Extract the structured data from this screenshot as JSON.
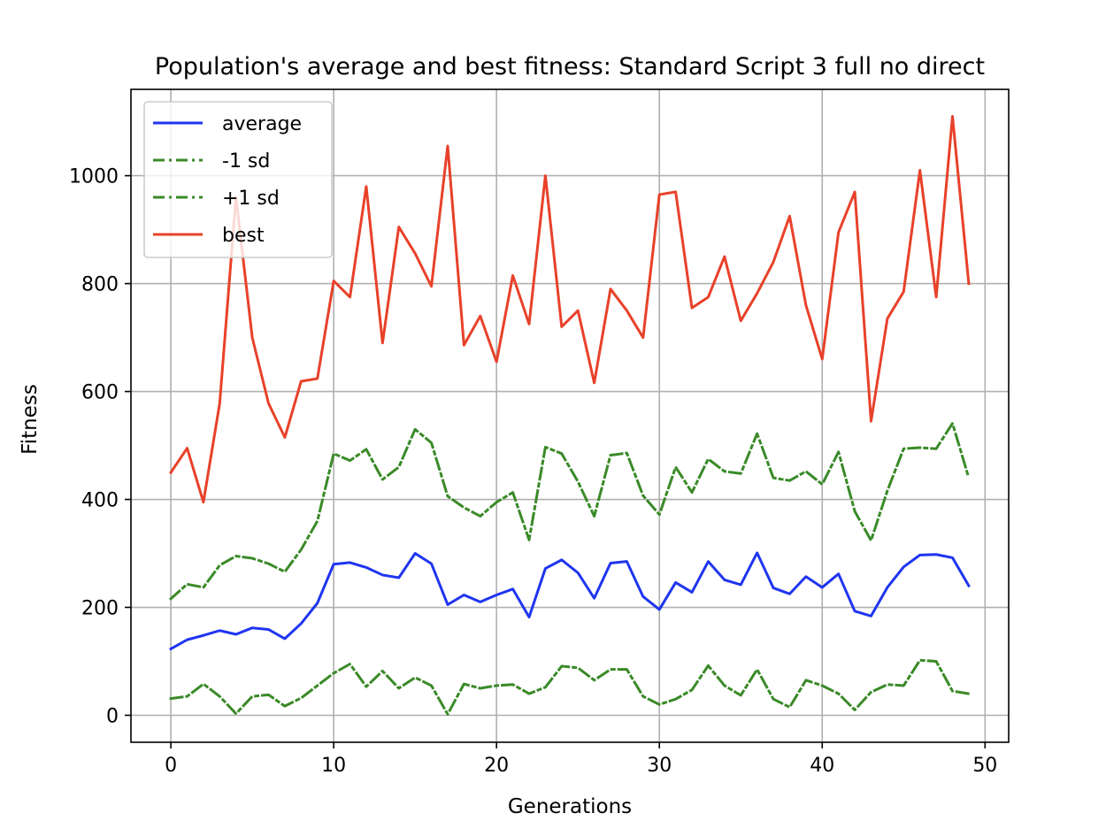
{
  "chart_data": {
    "type": "line",
    "title": "Population's average and best fitness: Standard Script 3 full no direct",
    "xlabel": "Generations",
    "ylabel": "Fitness",
    "xlim": [
      -2.45,
      51.45
    ],
    "ylim": [
      -50,
      1160
    ],
    "xticks": [
      0,
      10,
      20,
      30,
      40,
      50
    ],
    "yticks": [
      0,
      200,
      400,
      600,
      800,
      1000
    ],
    "grid": true,
    "legend_position": "upper-left",
    "x": [
      0,
      1,
      2,
      3,
      4,
      5,
      6,
      7,
      8,
      9,
      10,
      11,
      12,
      13,
      14,
      15,
      16,
      17,
      18,
      19,
      20,
      21,
      22,
      23,
      24,
      25,
      26,
      27,
      28,
      29,
      30,
      31,
      32,
      33,
      34,
      35,
      36,
      37,
      38,
      39,
      40,
      41,
      42,
      43,
      44,
      45,
      46,
      47,
      48,
      49
    ],
    "series": [
      {
        "name": "average",
        "color": "#1f35f0",
        "style": "solid",
        "values": [
          123,
          140,
          148,
          157,
          150,
          162,
          159,
          142,
          170,
          208,
          280,
          283,
          274,
          260,
          255,
          300,
          281,
          205,
          223,
          210,
          223,
          234,
          182,
          272,
          288,
          264,
          217,
          282,
          285,
          220,
          196,
          246,
          228,
          285,
          251,
          242,
          301,
          236,
          225,
          257,
          237,
          262,
          193,
          184,
          237,
          275,
          297,
          298,
          292,
          240
        ]
      },
      {
        "name": "-1 sd",
        "color": "#3a8a28",
        "style": "dashdot",
        "values": [
          31,
          35,
          58,
          35,
          3,
          35,
          38,
          17,
          32,
          55,
          78,
          95,
          53,
          82,
          50,
          70,
          55,
          2,
          58,
          50,
          55,
          57,
          40,
          52,
          91,
          88,
          65,
          85,
          85,
          35,
          20,
          30,
          47,
          92,
          55,
          37,
          85,
          30,
          15,
          65,
          55,
          40,
          10,
          43,
          57,
          55,
          102,
          100,
          45,
          40
        ]
      },
      {
        "name": "+1 sd",
        "color": "#3a8a28",
        "style": "dashdot",
        "values": [
          216,
          243,
          237,
          278,
          295,
          291,
          281,
          266,
          307,
          360,
          485,
          472,
          493,
          437,
          460,
          530,
          505,
          406,
          385,
          369,
          395,
          413,
          325,
          497,
          485,
          433,
          369,
          482,
          486,
          407,
          372,
          460,
          413,
          475,
          452,
          448,
          522,
          440,
          435,
          452,
          428,
          488,
          378,
          324,
          416,
          494,
          496,
          494,
          541,
          440
        ]
      },
      {
        "name": "best",
        "color": "#e8412a",
        "style": "solid",
        "values": [
          450,
          495,
          395,
          578,
          960,
          700,
          578,
          515,
          619,
          624,
          805,
          775,
          980,
          690,
          905,
          856,
          795,
          1055,
          686,
          740,
          655,
          815,
          725,
          1000,
          720,
          750,
          616,
          790,
          750,
          700,
          965,
          970,
          755,
          775,
          850,
          731,
          782,
          840,
          925,
          760,
          660,
          895,
          970,
          545,
          735,
          785,
          1010,
          775,
          1110,
          800
        ]
      }
    ]
  }
}
